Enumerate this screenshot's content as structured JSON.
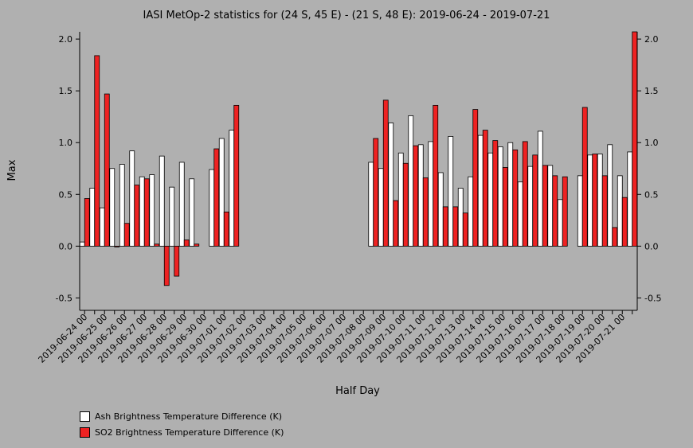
{
  "chart_data": {
    "type": "bar",
    "title": "IASI MetOp-2 statistics for (24 S, 45 E) - (21 S, 48 E): 2019-06-24 - 2019-07-21",
    "xlabel": "Half Day",
    "ylabel": "Max",
    "ylim": [
      -0.62,
      2.07
    ],
    "yticks": [
      "-0.5",
      "0.0",
      "0.5",
      "1.0",
      "1.5",
      "2.0"
    ],
    "categories": [
      "2019-06-24 00",
      "2019-06-24 12",
      "2019-06-25 00",
      "2019-06-25 12",
      "2019-06-26 00",
      "2019-06-26 12",
      "2019-06-27 00",
      "2019-06-27 12",
      "2019-06-28 00",
      "2019-06-28 12",
      "2019-06-29 00",
      "2019-06-29 12",
      "2019-06-30 00",
      "2019-06-30 12",
      "2019-07-01 00",
      "2019-07-01 12",
      "2019-07-02 00",
      "2019-07-02 12",
      "2019-07-03 00",
      "2019-07-03 12",
      "2019-07-04 00",
      "2019-07-04 12",
      "2019-07-05 00",
      "2019-07-05 12",
      "2019-07-06 00",
      "2019-07-06 12",
      "2019-07-07 00",
      "2019-07-07 12",
      "2019-07-08 00",
      "2019-07-08 12",
      "2019-07-09 00",
      "2019-07-09 12",
      "2019-07-10 00",
      "2019-07-10 12",
      "2019-07-11 00",
      "2019-07-11 12",
      "2019-07-12 00",
      "2019-07-12 12",
      "2019-07-13 00",
      "2019-07-13 12",
      "2019-07-14 00",
      "2019-07-14 12",
      "2019-07-15 00",
      "2019-07-15 12",
      "2019-07-16 00",
      "2019-07-16 12",
      "2019-07-17 00",
      "2019-07-17 12",
      "2019-07-18 00",
      "2019-07-18 12",
      "2019-07-19 00",
      "2019-07-19 12",
      "2019-07-20 00",
      "2019-07-20 12",
      "2019-07-21 00",
      "2019-07-21 12"
    ],
    "tick_labels": [
      "2019-06-24 00",
      "2019-06-25 00",
      "2019-06-26 00",
      "2019-06-27 00",
      "2019-06-28 00",
      "2019-06-29 00",
      "2019-06-30 00",
      "2019-07-01 00",
      "2019-07-02 00",
      "2019-07-03 00",
      "2019-07-04 00",
      "2019-07-05 00",
      "2019-07-06 00",
      "2019-07-07 00",
      "2019-07-08 00",
      "2019-07-09 00",
      "2019-07-10 00",
      "2019-07-11 00",
      "2019-07-12 00",
      "2019-07-13 00",
      "2019-07-14 00",
      "2019-07-15 00",
      "2019-07-16 00",
      "2019-07-17 00",
      "2019-07-18 00",
      "2019-07-19 00",
      "2019-07-20 00",
      "2019-07-21 00"
    ],
    "series": [
      {
        "name": "Ash Brightness Temperature Difference (K)",
        "color": "#ffffff",
        "values": [
          0.04,
          0.56,
          0.37,
          0.75,
          0.79,
          0.92,
          0.67,
          0.69,
          0.87,
          0.57,
          0.81,
          0.65,
          null,
          0.74,
          1.04,
          1.12,
          null,
          null,
          null,
          null,
          null,
          null,
          null,
          null,
          null,
          null,
          null,
          null,
          null,
          0.81,
          0.75,
          1.19,
          0.9,
          1.26,
          0.98,
          1.01,
          0.71,
          1.06,
          0.56,
          0.67,
          1.07,
          0.9,
          0.96,
          1.0,
          0.62,
          0.77,
          1.11,
          0.78,
          0.45,
          null,
          0.68,
          0.88,
          0.89,
          0.98,
          0.68,
          0.91
        ]
      },
      {
        "name": "SO2 Brightness Temperature Difference (K)",
        "color": "#ee2222",
        "values": [
          0.46,
          1.84,
          1.47,
          0.0,
          0.22,
          0.59,
          0.65,
          0.02,
          -0.38,
          -0.29,
          0.06,
          0.02,
          null,
          0.94,
          0.33,
          1.36,
          null,
          null,
          null,
          null,
          null,
          null,
          null,
          null,
          null,
          null,
          null,
          null,
          null,
          1.04,
          1.41,
          0.44,
          0.8,
          0.97,
          0.66,
          1.36,
          0.38,
          0.38,
          0.32,
          1.32,
          1.12,
          1.02,
          0.76,
          0.93,
          1.01,
          0.88,
          0.78,
          0.68,
          0.67,
          null,
          1.34,
          0.89,
          0.68,
          0.18,
          0.47,
          2.07
        ]
      }
    ],
    "legend_position": "bottom-left",
    "grid": false
  }
}
